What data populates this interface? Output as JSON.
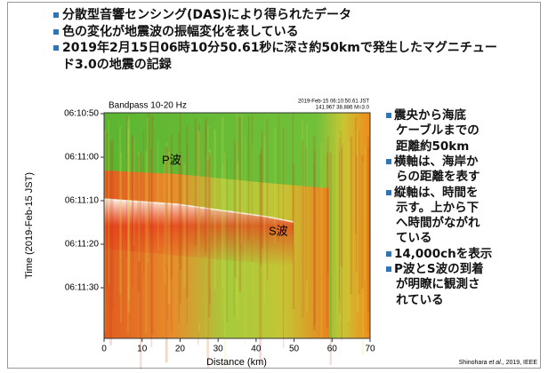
{
  "bullets": [
    [
      "分散型音響センシング(DAS)により得られたデータ"
    ],
    [
      "色の変化が地震波の振幅変化を表している"
    ],
    [
      "2019年2月15日06時10分50.61秒に深さ約50kmで発生したマグニチュー",
      "ド3.0の地震の記録"
    ]
  ],
  "plot": {
    "title": "Bandpass 10-20 Hz",
    "meta": [
      "2019-Feb-15 06:10:50.61 JST",
      "141.967 38.886 M=3.0"
    ],
    "y_label": "Time (2019-Feb-15 JST)",
    "x_label": "Distance (km)",
    "yticks": [
      "06:10:50",
      "06:11:00",
      "06:11:10",
      "06:11:20",
      "06:11:30"
    ],
    "xticks": [
      "0",
      "10",
      "20",
      "30",
      "40",
      "50",
      "60",
      "70"
    ],
    "annotations": [
      "P波",
      "S波"
    ]
  },
  "side_bullets": [
    [
      "震央から海底",
      "ケーブルまでの",
      "距離約50km"
    ],
    [
      "横軸は、海岸か",
      "らの距離を表す"
    ],
    [
      "縦軸は、時間を",
      "示す。上から下",
      "へ時間がながれ",
      "ている"
    ],
    [
      "14,000chを表示"
    ],
    [
      "P波とS波の到着",
      "が明瞭に観測さ",
      "れている"
    ]
  ],
  "credit": [
    "Shinohara ",
    "et al.",
    ", 2019, IEEE"
  ]
}
